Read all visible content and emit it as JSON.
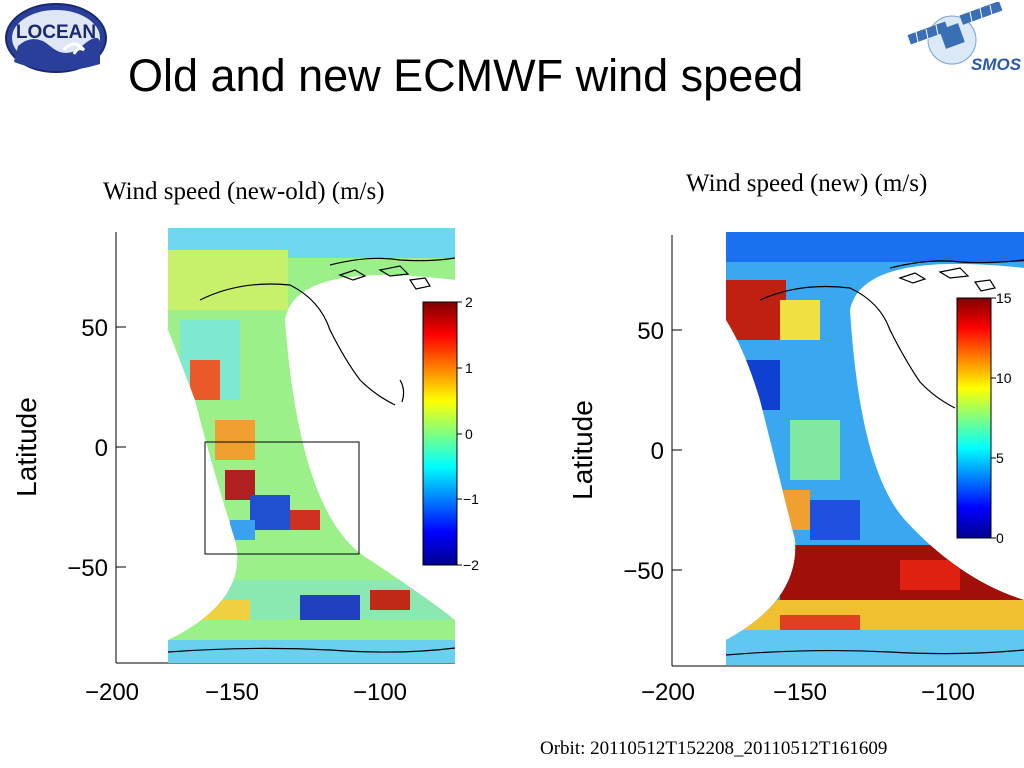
{
  "slide": {
    "title": "Old and new ECMWF wind speed",
    "footer": "Orbit: 20110512T152208_20110512T161609"
  },
  "logos": {
    "left": {
      "text": "LOCEAN",
      "icon": "locean-wave-logo"
    },
    "right": {
      "text": "SMOS",
      "icon": "smos-satellite-logo"
    }
  },
  "panels": [
    {
      "title": "Wind speed (new-old) (m/s)",
      "ylabel": "Latitude",
      "xticks": [
        "−200",
        "−150",
        "−100"
      ],
      "yticks": [
        "50",
        "0",
        "−50"
      ],
      "colorbar": {
        "ticks": [
          "2",
          "1",
          "0",
          "−1",
          "−2"
        ],
        "colormap": "jet"
      },
      "annotation": "rectangle region box"
    },
    {
      "title": "Wind speed (new) (m/s)",
      "ylabel": "Latitude",
      "xticks": [
        "−200",
        "−150",
        "−100"
      ],
      "yticks": [
        "50",
        "0",
        "−50"
      ],
      "colorbar": {
        "ticks": [
          "15",
          "10",
          "5",
          "0"
        ],
        "colormap": "jet"
      }
    }
  ],
  "colors": {
    "jet_dark_blue": "#00008f",
    "jet_blue": "#0040ff",
    "jet_cyan": "#00e0ff",
    "jet_green": "#80ff80",
    "jet_yellow": "#ffe000",
    "jet_orange": "#ff6000",
    "jet_dark_red": "#800000"
  }
}
